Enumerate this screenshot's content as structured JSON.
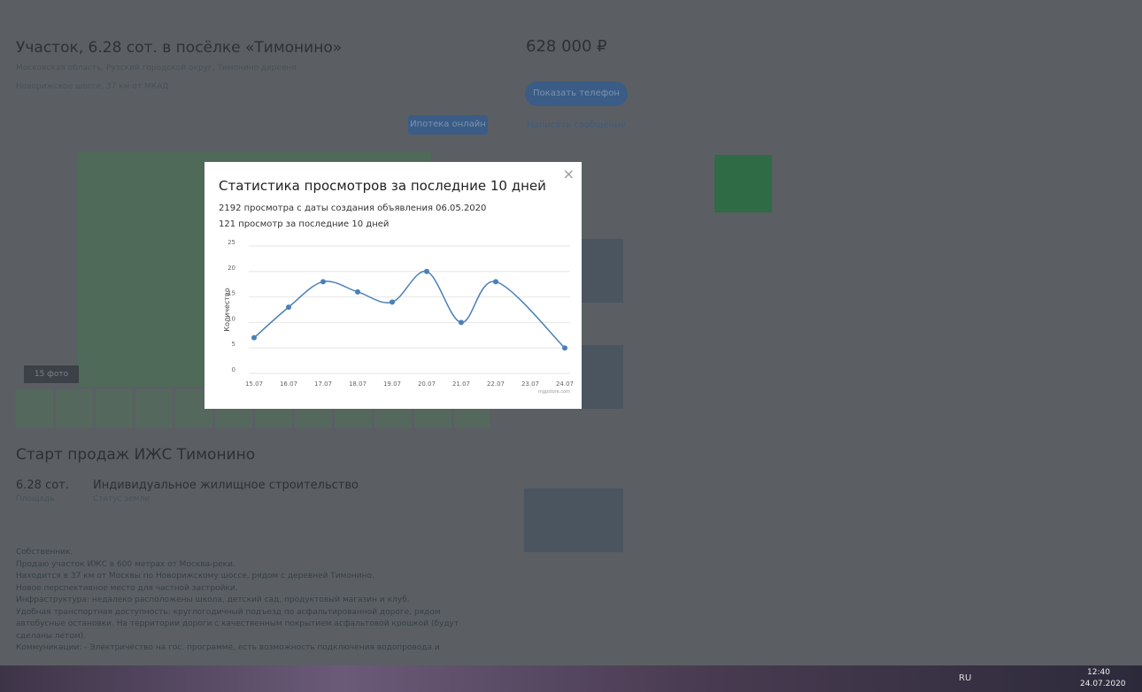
{
  "page": {
    "title": "Участок, 6.28 сот. в посёлке «Тимонино»",
    "address": "Московская область, Рузский городской округ, Тимонино деревня",
    "highway": "Новорижское шоссе, 37 км от МКАД",
    "mortgage_button": "Ипотека онлайн",
    "price": "628 000 ₽",
    "buttons": [
      "Показать телефон",
      "Написать сообщение"
    ],
    "photos": "15 фото",
    "section_title": "Старт продаж ИЖС Тимонино",
    "area": "6.28 сот.",
    "area_label": "Площадь",
    "purpose": "Индивидуальное жилищное строительство",
    "purpose_label": "Статус земли",
    "description": [
      "Собственник.",
      "Продаю участок ИЖС в 600 метрах от Москва-реки.",
      "Находится в 37 км от Москвы по Новорижскому шоссе, рядом с деревней Тимонино.",
      "Новое перспективное место для частной застройки.",
      "Инфраструктура: недалеко расположены школа, детский сад, продуктовый магазин и клуб.",
      "Удобная транспортная доступность: круглогодичный подъезд по асфальтированной дороге, рядом",
      "автобусные остановки. На территории дороги с качественным покрытием асфальтовой крошкой (будут",
      "сделаны летом).",
      "Коммуникации: - Электричество на гос. программе, есть возможность подключения водопровода и"
    ]
  },
  "modal": {
    "title": "Статистика просмотров за последние 10 дней",
    "lines": [
      "2192 просмотра с даты создания объявления 06.05.2020",
      "121 просмотр за последние 10 дней"
    ],
    "chart_data": {
      "type": "line",
      "y_label": "Количество",
      "watermark": "mgpstore.com",
      "categories": [
        "15.07",
        "16.07",
        "17.07",
        "18.07",
        "19.07",
        "20.07",
        "21.07",
        "22.07",
        "23.07",
        "24.07"
      ],
      "series": [
        {
          "color": "#4a80b8",
          "x": [
            "15.07",
            "16.07",
            "17.07",
            "18.07",
            "19.07",
            "20.07",
            "21.07",
            "22.07",
            "24.07"
          ],
          "values": [
            7,
            13,
            18,
            16,
            14,
            20,
            10,
            18,
            5
          ]
        }
      ],
      "ylim": [
        0,
        25
      ],
      "yticks": [
        0,
        5,
        10,
        15,
        20,
        25
      ],
      "grid": true
    }
  },
  "taskbar": {
    "lang": "RU",
    "time": "12:40",
    "date": "24.07.2020"
  }
}
